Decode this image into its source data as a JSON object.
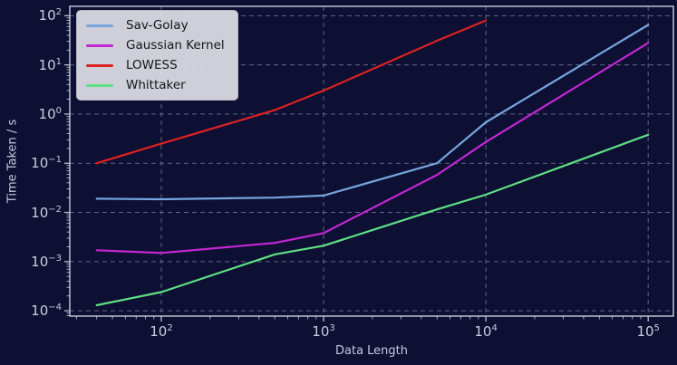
{
  "colors": {
    "background": "#0d0f33",
    "foreground": "#ccccdd",
    "grid": "#a9a9c2",
    "legend_background": "#dadae3",
    "legend_text": "#161616"
  },
  "chart_data": {
    "type": "line",
    "title": "",
    "xlabel": "Data Length",
    "ylabel": "Time Taken / s",
    "xscale": "log",
    "yscale": "log",
    "xlim": [
      27.3,
      143000
    ],
    "ylim": [
      7.8e-05,
      155
    ],
    "x_tick_exponents": [
      2,
      3,
      4,
      5
    ],
    "y_tick_exponents": [
      2,
      1,
      0,
      -1,
      -2,
      -3,
      -4
    ],
    "grid": true,
    "grid_style": "dashed",
    "legend_position": "upper left",
    "series": [
      {
        "name": "Sav-Golay",
        "color": "#76a5dd",
        "x": [
          40,
          100,
          500,
          1000,
          5000,
          10000,
          100000
        ],
        "y": [
          0.019,
          0.0185,
          0.02,
          0.022,
          0.1,
          0.68,
          65
        ]
      },
      {
        "name": "Gaussian Kernel",
        "color": "#c427d4",
        "x": [
          40,
          100,
          500,
          1000,
          5000,
          10000,
          100000
        ],
        "y": [
          0.0017,
          0.0015,
          0.0024,
          0.0038,
          0.058,
          0.27,
          28
        ]
      },
      {
        "name": "LOWESS",
        "color": "#dd2222",
        "x": [
          40,
          100,
          500,
          1000,
          5000,
          10000
        ],
        "y": [
          0.1,
          0.25,
          1.2,
          3.0,
          31,
          80
        ]
      },
      {
        "name": "Whittaker",
        "color": "#5ee084",
        "x": [
          40,
          100,
          500,
          1000,
          5000,
          10000,
          100000
        ],
        "y": [
          0.00013,
          0.00024,
          0.0014,
          0.0021,
          0.0115,
          0.023,
          0.38
        ]
      }
    ]
  }
}
